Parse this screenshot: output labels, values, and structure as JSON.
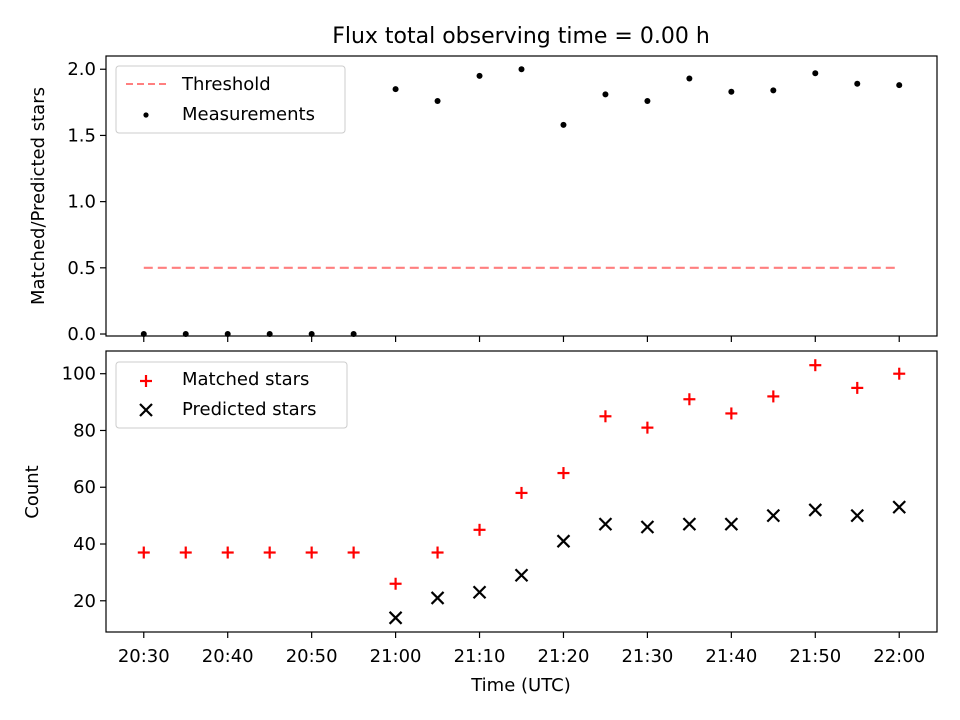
{
  "chart_data": [
    {
      "type": "scatter",
      "title": "Flux total observing time = 0.00 h",
      "ylabel": "Matched/Predicted stars",
      "xlabel": "",
      "ylim": [
        0,
        2.1
      ],
      "yticks": [
        0.0,
        0.5,
        1.0,
        1.5,
        2.0
      ],
      "ytick_labels": [
        "0.0",
        "0.5",
        "1.0",
        "1.5",
        "2.0"
      ],
      "legend_position": "top-left",
      "threshold": {
        "name": "Threshold",
        "value": 0.5,
        "color": "#ff7f7f",
        "style": "dashed",
        "x_range": [
          "20:30",
          "22:00"
        ]
      },
      "series": [
        {
          "name": "Measurements",
          "marker": "dot",
          "color": "#000000",
          "x": [
            "20:30",
            "20:35",
            "20:40",
            "20:45",
            "20:50",
            "20:55",
            "21:00",
            "21:05",
            "21:10",
            "21:15",
            "21:20",
            "21:25",
            "21:30",
            "21:35",
            "21:40",
            "21:45",
            "21:50",
            "21:55",
            "22:00"
          ],
          "y": [
            0.0,
            0.0,
            0.0,
            0.0,
            0.0,
            0.0,
            1.85,
            1.76,
            1.95,
            2.0,
            1.58,
            1.81,
            1.76,
            1.93,
            1.83,
            1.84,
            1.97,
            1.89,
            1.88
          ]
        }
      ]
    },
    {
      "type": "scatter",
      "title": "",
      "xlabel": "Time (UTC)",
      "ylabel": "Count",
      "ylim": [
        9,
        108
      ],
      "yticks": [
        20,
        40,
        60,
        80,
        100
      ],
      "ytick_labels": [
        "20",
        "40",
        "60",
        "80",
        "100"
      ],
      "xticks": [
        "20:30",
        "20:40",
        "20:50",
        "21:00",
        "21:10",
        "21:20",
        "21:30",
        "21:40",
        "21:50",
        "22:00"
      ],
      "legend_position": "top-left",
      "series": [
        {
          "name": "Matched stars",
          "marker": "plus",
          "color": "#ff0000",
          "x": [
            "20:30",
            "20:35",
            "20:40",
            "20:45",
            "20:50",
            "20:55",
            "21:00",
            "21:05",
            "21:10",
            "21:15",
            "21:20",
            "21:25",
            "21:30",
            "21:35",
            "21:40",
            "21:45",
            "21:50",
            "21:55",
            "22:00"
          ],
          "y": [
            37,
            37,
            37,
            37,
            37,
            37,
            26,
            37,
            45,
            58,
            65,
            85,
            81,
            91,
            86,
            92,
            103,
            95,
            100
          ]
        },
        {
          "name": "Predicted stars",
          "marker": "x",
          "color": "#000000",
          "x": [
            "21:00",
            "21:05",
            "21:10",
            "21:15",
            "21:20",
            "21:25",
            "21:30",
            "21:35",
            "21:40",
            "21:45",
            "21:50",
            "21:55",
            "22:00"
          ],
          "y": [
            14,
            21,
            23,
            29,
            41,
            47,
            46,
            47,
            47,
            50,
            52,
            50,
            53
          ]
        }
      ]
    }
  ]
}
